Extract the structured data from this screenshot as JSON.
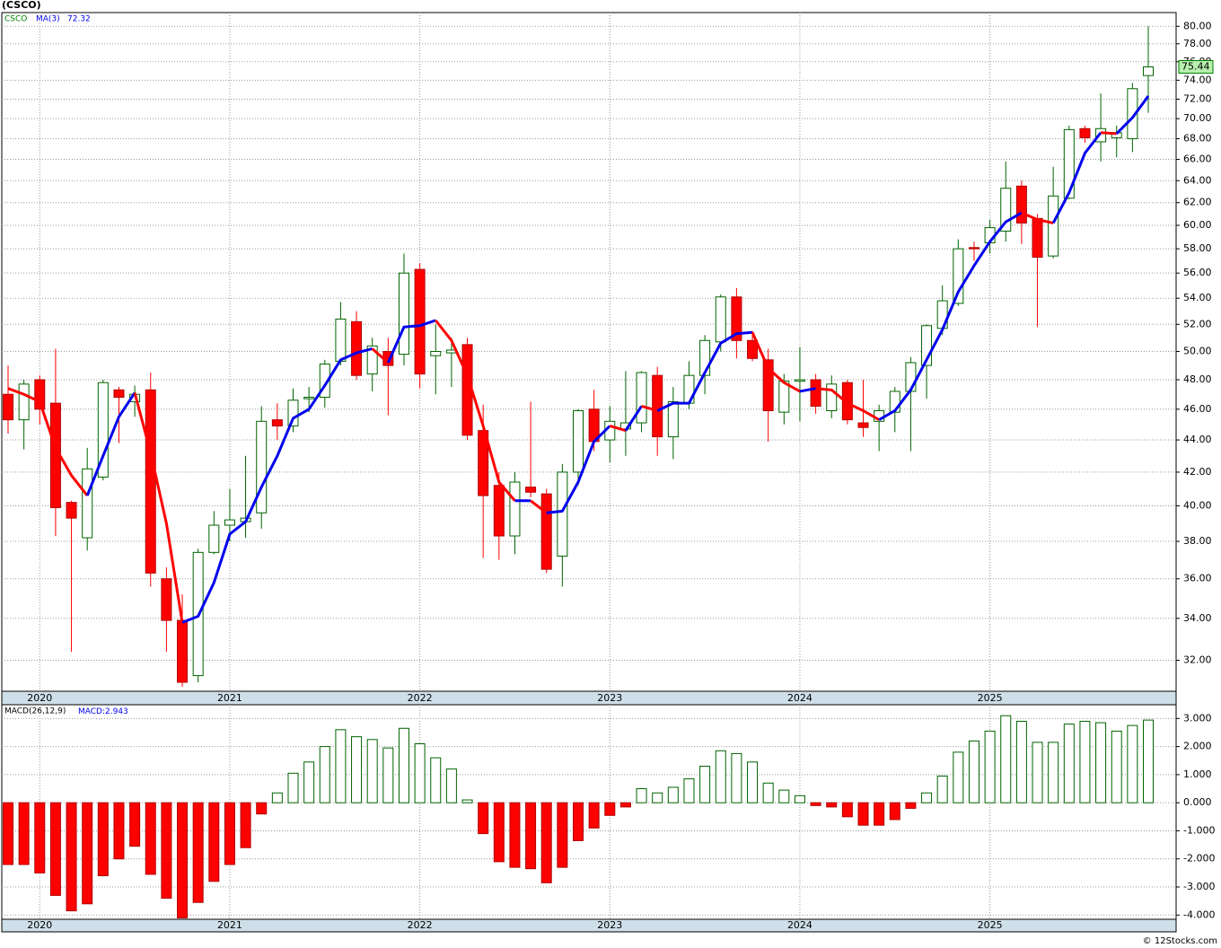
{
  "chart_data": [
    {
      "type": "candlestick",
      "title": "(CSCO)",
      "symbol": "CSCO",
      "log_scale": true,
      "grid": true,
      "up_color": "#006400",
      "down_color": "#ff0000",
      "categories": [
        null,
        null,
        "2020",
        null,
        null,
        null,
        null,
        null,
        null,
        null,
        null,
        null,
        null,
        null,
        "2021",
        null,
        null,
        null,
        null,
        null,
        null,
        null,
        null,
        null,
        null,
        null,
        "2022",
        null,
        null,
        null,
        null,
        null,
        null,
        null,
        null,
        null,
        null,
        null,
        "2023",
        null,
        null,
        null,
        null,
        null,
        null,
        null,
        null,
        null,
        null,
        null,
        "2024",
        null,
        null,
        null,
        null,
        null,
        null,
        null,
        null,
        null,
        null,
        null,
        "2025",
        null,
        null,
        null,
        null,
        null,
        null,
        null,
        null,
        null,
        null
      ],
      "open": [
        47.0,
        45.3,
        48.0,
        46.4,
        40.2,
        38.2,
        41.7,
        47.3,
        46.5,
        47.3,
        36.0,
        33.9,
        31.3,
        37.4,
        38.9,
        39.1,
        39.6,
        45.3,
        44.9,
        46.7,
        46.8,
        49.3,
        52.2,
        48.4,
        50.0,
        49.8,
        56.3,
        49.7,
        49.9,
        50.5,
        44.6,
        41.2,
        38.3,
        41.1,
        40.7,
        37.2,
        42.0,
        46.0,
        44.0,
        44.7,
        45.1,
        48.3,
        44.2,
        46.4,
        48.3,
        50.7,
        54.1,
        50.8,
        49.4,
        45.8,
        47.9,
        48.0,
        45.9,
        47.8,
        45.1,
        45.2,
        45.8,
        47.2,
        49.0,
        51.7,
        53.6,
        58.1,
        58.5,
        59.5,
        63.5,
        60.6,
        57.4,
        62.4,
        69.0,
        67.7,
        68.1,
        68.0,
        74.5
      ],
      "high": [
        49.0,
        48.0,
        48.3,
        50.2,
        40.3,
        43.5,
        48.0,
        47.5,
        47.6,
        48.5,
        36.6,
        35.2,
        37.6,
        39.7,
        41.0,
        43.0,
        46.2,
        46.4,
        47.4,
        47.5,
        49.4,
        53.7,
        53.0,
        51.0,
        51.0,
        57.6,
        56.8,
        52.0,
        51.0,
        51.0,
        46.3,
        42.0,
        42.0,
        46.5,
        41.0,
        42.5,
        46.0,
        47.3,
        46.2,
        48.6,
        48.6,
        48.9,
        47.5,
        49.3,
        51.2,
        54.3,
        54.8,
        51.5,
        50.2,
        48.4,
        50.3,
        48.4,
        48.3,
        48.0,
        48.0,
        46.3,
        47.5,
        49.6,
        52.0,
        55.0,
        58.8,
        58.6,
        60.5,
        65.8,
        64.0,
        61.0,
        65.3,
        69.3,
        69.3,
        72.6,
        69.3,
        73.7,
        80.0
      ],
      "low": [
        44.4,
        43.4,
        45.0,
        38.3,
        32.4,
        37.5,
        41.5,
        43.8,
        45.5,
        35.6,
        32.4,
        30.8,
        31.0,
        37.3,
        38.0,
        38.2,
        38.7,
        44.0,
        44.5,
        45.8,
        46.1,
        49.0,
        48.0,
        47.2,
        45.6,
        49.0,
        47.4,
        47.0,
        47.5,
        44.0,
        37.1,
        37.0,
        37.3,
        40.5,
        36.3,
        35.6,
        41.2,
        43.3,
        42.6,
        43.0,
        44.5,
        43.0,
        42.8,
        46.0,
        47.0,
        50.0,
        49.5,
        49.3,
        43.9,
        45.0,
        45.2,
        45.7,
        45.4,
        45.0,
        44.2,
        43.3,
        44.5,
        43.3,
        46.7,
        51.2,
        53.4,
        57.0,
        57.6,
        58.6,
        58.4,
        51.8,
        57.2,
        62.3,
        67.6,
        65.8,
        66.2,
        66.7,
        70.6
      ],
      "close": [
        45.3,
        47.7,
        46.0,
        39.9,
        39.3,
        42.2,
        47.8,
        46.8,
        47.0,
        36.3,
        33.9,
        31.0,
        37.4,
        38.9,
        39.2,
        39.3,
        45.2,
        44.9,
        46.6,
        46.8,
        49.1,
        52.4,
        48.3,
        50.4,
        49.0,
        56.0,
        48.4,
        50.0,
        50.1,
        44.3,
        40.6,
        38.3,
        41.4,
        40.8,
        36.5,
        42.0,
        45.9,
        43.9,
        45.2,
        45.1,
        48.5,
        44.2,
        46.5,
        48.3,
        50.8,
        54.1,
        50.8,
        49.5,
        45.9,
        47.9,
        48.0,
        46.2,
        47.7,
        45.3,
        44.8,
        45.9,
        47.2,
        49.2,
        51.9,
        53.8,
        58.0,
        58.0,
        59.8,
        63.3,
        60.2,
        57.3,
        62.6,
        68.9,
        68.1,
        69.0,
        68.6,
        73.1,
        75.44
      ],
      "series": [
        {
          "name": "MA(3)",
          "up_color": "#0000ee",
          "down_color": "#ff0000",
          "values": [
            47.4,
            47.0,
            46.5,
            43.5,
            41.8,
            40.6,
            43.0,
            45.5,
            47.1,
            43.2,
            39.0,
            33.8,
            34.1,
            35.8,
            38.4,
            39.1,
            41.1,
            43.0,
            45.4,
            46.0,
            47.6,
            49.4,
            49.9,
            50.2,
            49.2,
            51.8,
            51.9,
            52.3,
            50.8,
            48.3,
            44.9,
            41.4,
            40.3,
            40.3,
            39.6,
            39.7,
            41.4,
            43.9,
            44.9,
            44.6,
            46.2,
            45.9,
            46.4,
            46.4,
            48.5,
            50.6,
            51.3,
            51.4,
            48.8,
            47.8,
            47.2,
            47.4,
            47.3,
            46.4,
            45.9,
            45.3,
            45.9,
            47.3,
            49.4,
            51.6,
            54.5,
            56.6,
            58.6,
            60.3,
            61.1,
            60.5,
            60.2,
            62.9,
            66.6,
            68.6,
            68.5,
            70.1,
            72.32
          ]
        }
      ],
      "ylim": [
        30.6,
        81.6
      ],
      "yticks": [
        {
          "value": 32,
          "label": "32.00"
        },
        {
          "value": 34,
          "label": "34.00"
        },
        {
          "value": 36,
          "label": "36.00"
        },
        {
          "value": 38,
          "label": "38.00"
        },
        {
          "value": 40,
          "label": "40.00"
        },
        {
          "value": 42,
          "label": "42.00"
        },
        {
          "value": 44,
          "label": "44.00"
        },
        {
          "value": 46,
          "label": "46.00"
        },
        {
          "value": 48,
          "label": "48.00"
        },
        {
          "value": 50,
          "label": "50.00"
        },
        {
          "value": 52,
          "label": "52.00"
        },
        {
          "value": 54,
          "label": "54.00"
        },
        {
          "value": 56,
          "label": "56.00"
        },
        {
          "value": 58,
          "label": "58.00"
        },
        {
          "value": 60,
          "label": "60.00"
        },
        {
          "value": 62,
          "label": "62.00"
        },
        {
          "value": 64,
          "label": "64.00"
        },
        {
          "value": 66,
          "label": "66.00"
        },
        {
          "value": 68,
          "label": "68.00"
        },
        {
          "value": 70,
          "label": "70.00"
        },
        {
          "value": 72,
          "label": "72.00"
        },
        {
          "value": 74,
          "label": "74.00"
        },
        {
          "value": 76,
          "label": "76.00"
        },
        {
          "value": 78,
          "label": "78.00"
        },
        {
          "value": 80,
          "label": "80.00"
        }
      ]
    },
    {
      "type": "bar",
      "name": "MACD(26,12,9)",
      "value_prefix": "MACD:",
      "grid": true,
      "pos_color": "#006400",
      "neg_color": "#ff0000",
      "categories": [
        null,
        null,
        "2020",
        null,
        null,
        null,
        null,
        null,
        null,
        null,
        null,
        null,
        null,
        null,
        "2021",
        null,
        null,
        null,
        null,
        null,
        null,
        null,
        null,
        null,
        null,
        null,
        "2022",
        null,
        null,
        null,
        null,
        null,
        null,
        null,
        null,
        null,
        null,
        null,
        "2023",
        null,
        null,
        null,
        null,
        null,
        null,
        null,
        null,
        null,
        null,
        null,
        "2024",
        null,
        null,
        null,
        null,
        null,
        null,
        null,
        null,
        null,
        null,
        null,
        "2025",
        null,
        null,
        null,
        null,
        null,
        null,
        null,
        null,
        null,
        null
      ],
      "values": [
        -2.2,
        -2.2,
        -2.5,
        -3.3,
        -3.85,
        -3.6,
        -2.6,
        -2.0,
        -1.55,
        -2.55,
        -3.4,
        -4.1,
        -3.55,
        -2.8,
        -2.2,
        -1.6,
        -0.4,
        0.35,
        1.05,
        1.45,
        2.0,
        2.6,
        2.35,
        2.25,
        1.95,
        2.65,
        2.1,
        1.6,
        1.2,
        0.1,
        -1.1,
        -2.1,
        -2.3,
        -2.35,
        -2.85,
        -2.3,
        -1.35,
        -0.9,
        -0.45,
        -0.15,
        0.5,
        0.35,
        0.55,
        0.85,
        1.3,
        1.85,
        1.75,
        1.45,
        0.7,
        0.45,
        0.25,
        -0.1,
        -0.15,
        -0.5,
        -0.8,
        -0.8,
        -0.6,
        -0.2,
        0.35,
        0.95,
        1.8,
        2.2,
        2.55,
        3.1,
        2.9,
        2.15,
        2.15,
        2.8,
        2.9,
        2.85,
        2.55,
        2.75,
        2.943
      ],
      "ylim": [
        -4.15,
        3.49
      ],
      "yticks": [
        {
          "value": -4,
          "label": "-4.000"
        },
        {
          "value": -3,
          "label": "-3.000"
        },
        {
          "value": -2,
          "label": "-2.000"
        },
        {
          "value": -1,
          "label": "-1.000"
        },
        {
          "value": 0,
          "label": "0.000"
        },
        {
          "value": 1,
          "label": "1.000"
        },
        {
          "value": 2,
          "label": "2.000"
        },
        {
          "value": 3,
          "label": "3.000"
        }
      ]
    }
  ],
  "footer": "© 12Stocks.com"
}
